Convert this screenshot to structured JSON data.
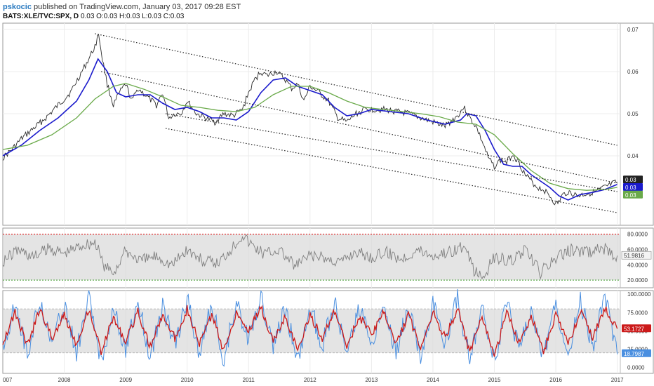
{
  "header": {
    "user": "pskocic",
    "published": "published on TradingView.com, January 03, 2017 09:28 EST",
    "symbol": "BATS:XLE/TVC:SPX, D",
    "ohlc": "0.03 O:0.03 H:0.03 L:0.03 C:0.03"
  },
  "colors": {
    "price": "#2b2b2b",
    "ma_fast": "#1a1acc",
    "ma_slow": "#6aaa4a",
    "channel": "#222222",
    "rsi_line": "#7f7f7f",
    "rsi_band": "#d9d9d9",
    "rsi_upper": "#e03030",
    "rsi_lower": "#5aa84a",
    "stoch_k": "#4a8fe0",
    "stoch_d": "#cc1a1a",
    "stoch_band": "#d9d9d9"
  },
  "chart_data": [
    {
      "type": "line",
      "panel": "price",
      "x_labels": [
        "007",
        "2008",
        "2009",
        "2010",
        "2011",
        "2012",
        "2013",
        "2014",
        "2015",
        "2016",
        "2017"
      ],
      "xlim": [
        2007.0,
        2017.05
      ],
      "y_ticks": [
        "0.07",
        "0.06",
        "0.05",
        "0.04"
      ],
      "ylim": [
        0.0235,
        0.0715
      ],
      "series": [
        {
          "key": "price",
          "x": [
            2007.0,
            2007.15,
            2007.3,
            2007.5,
            2007.7,
            2007.9,
            2008.1,
            2008.25,
            2008.4,
            2008.5,
            2008.56,
            2008.62,
            2008.7,
            2008.8,
            2008.9,
            2009.0,
            2009.1,
            2009.2,
            2009.35,
            2009.5,
            2009.6,
            2009.7,
            2009.8,
            2009.9,
            2010.0,
            2010.15,
            2010.3,
            2010.45,
            2010.6,
            2010.75,
            2010.9,
            2011.0,
            2011.1,
            2011.2,
            2011.3,
            2011.45,
            2011.6,
            2011.7,
            2011.8,
            2011.9,
            2012.0,
            2012.15,
            2012.3,
            2012.45,
            2012.6,
            2012.75,
            2012.9,
            2013.0,
            2013.2,
            2013.4,
            2013.6,
            2013.8,
            2014.0,
            2014.2,
            2014.4,
            2014.5,
            2014.55,
            2014.6,
            2014.7,
            2014.8,
            2014.9,
            2015.0,
            2015.1,
            2015.2,
            2015.3,
            2015.4,
            2015.5,
            2015.6,
            2015.7,
            2015.8,
            2015.9,
            2016.0,
            2016.05,
            2016.1,
            2016.2,
            2016.35,
            2016.5,
            2016.65,
            2016.8,
            2016.95,
            2017.0
          ],
          "values": [
            0.0395,
            0.0415,
            0.044,
            0.0465,
            0.049,
            0.052,
            0.055,
            0.059,
            0.063,
            0.066,
            0.069,
            0.063,
            0.057,
            0.052,
            0.055,
            0.057,
            0.053,
            0.056,
            0.054,
            0.052,
            0.055,
            0.049,
            0.05,
            0.05,
            0.053,
            0.05,
            0.049,
            0.048,
            0.05,
            0.0495,
            0.051,
            0.055,
            0.058,
            0.06,
            0.059,
            0.06,
            0.058,
            0.056,
            0.057,
            0.053,
            0.0565,
            0.055,
            0.053,
            0.049,
            0.048,
            0.05,
            0.051,
            0.051,
            0.051,
            0.0505,
            0.05,
            0.049,
            0.048,
            0.047,
            0.0495,
            0.0515,
            0.0505,
            0.049,
            0.047,
            0.0435,
            0.0395,
            0.0375,
            0.039,
            0.0385,
            0.0405,
            0.0385,
            0.0355,
            0.034,
            0.0325,
            0.032,
            0.0305,
            0.0285,
            0.029,
            0.0305,
            0.0315,
            0.0305,
            0.031,
            0.0315,
            0.0325,
            0.0335,
            0.0338
          ]
        },
        {
          "key": "ma_fast",
          "x": [
            2007.0,
            2007.3,
            2007.6,
            2007.9,
            2008.2,
            2008.4,
            2008.55,
            2008.7,
            2008.85,
            2009.0,
            2009.2,
            2009.4,
            2009.6,
            2009.8,
            2010.0,
            2010.2,
            2010.4,
            2010.6,
            2010.8,
            2011.0,
            2011.2,
            2011.4,
            2011.6,
            2011.8,
            2012.0,
            2012.2,
            2012.4,
            2012.6,
            2012.8,
            2013.0,
            2013.3,
            2013.6,
            2013.9,
            2014.2,
            2014.45,
            2014.55,
            2014.7,
            2014.85,
            2015.0,
            2015.15,
            2015.3,
            2015.45,
            2015.6,
            2015.75,
            2015.9,
            2016.05,
            2016.2,
            2016.4,
            2016.6,
            2016.8,
            2017.0
          ],
          "values": [
            0.04,
            0.0425,
            0.046,
            0.049,
            0.053,
            0.058,
            0.063,
            0.06,
            0.055,
            0.054,
            0.0545,
            0.0545,
            0.0525,
            0.051,
            0.0515,
            0.0505,
            0.049,
            0.049,
            0.0485,
            0.0505,
            0.055,
            0.058,
            0.0585,
            0.0565,
            0.0555,
            0.0545,
            0.0515,
            0.0495,
            0.05,
            0.051,
            0.0505,
            0.05,
            0.0485,
            0.0475,
            0.0485,
            0.05,
            0.0495,
            0.046,
            0.0415,
            0.038,
            0.0375,
            0.0375,
            0.0355,
            0.034,
            0.0325,
            0.0305,
            0.0295,
            0.0308,
            0.0313,
            0.032,
            0.0332
          ]
        },
        {
          "key": "ma_slow",
          "x": [
            2007.0,
            2007.4,
            2007.8,
            2008.2,
            2008.5,
            2008.8,
            2009.0,
            2009.3,
            2009.6,
            2009.9,
            2010.2,
            2010.5,
            2010.8,
            2011.1,
            2011.4,
            2011.7,
            2012.0,
            2012.3,
            2012.6,
            2012.9,
            2013.2,
            2013.5,
            2013.8,
            2014.1,
            2014.4,
            2014.7,
            2015.0,
            2015.3,
            2015.6,
            2015.9,
            2016.2,
            2016.5,
            2016.8,
            2017.0
          ],
          "values": [
            0.0415,
            0.0425,
            0.045,
            0.049,
            0.0535,
            0.0565,
            0.0572,
            0.0558,
            0.054,
            0.052,
            0.0515,
            0.0508,
            0.0505,
            0.0515,
            0.0545,
            0.0565,
            0.0565,
            0.055,
            0.053,
            0.0515,
            0.051,
            0.0505,
            0.05,
            0.0493,
            0.048,
            0.0475,
            0.045,
            0.0405,
            0.0365,
            0.0335,
            0.0322,
            0.0318,
            0.032,
            0.0325
          ]
        },
        {
          "key": "channel",
          "x": [
            2008.5,
            2017.0
          ],
          "values": [
            0.069,
            0.0425
          ]
        },
        {
          "key": "channel",
          "x": [
            2008.6,
            2017.0
          ],
          "values": [
            0.06,
            0.0335
          ]
        },
        {
          "key": "channel",
          "x": [
            2009.65,
            2017.0
          ],
          "values": [
            0.05,
            0.0315
          ]
        },
        {
          "key": "channel",
          "x": [
            2009.65,
            2017.0
          ],
          "values": [
            0.0465,
            0.0265
          ]
        }
      ],
      "last_values": [
        {
          "label": "0.03",
          "color": "#222222",
          "y": 0.0338
        },
        {
          "label": "0.03",
          "color": "#1a1acc",
          "y": 0.0325
        },
        {
          "label": "0.03",
          "color": "#6aaa4a",
          "y": 0.0312
        }
      ]
    },
    {
      "type": "line",
      "panel": "rsi",
      "y_ticks": [
        "80.0000",
        "60.0000",
        "40.0000",
        "20.0000"
      ],
      "ylim": [
        10,
        88
      ],
      "bands": [
        20,
        80
      ],
      "series": [
        {
          "key": "rsi_line",
          "x": [
            2007.0,
            2007.25,
            2007.5,
            2007.75,
            2008.0,
            2008.25,
            2008.5,
            2008.65,
            2008.8,
            2009.0,
            2009.25,
            2009.5,
            2009.75,
            2010.0,
            2010.25,
            2010.5,
            2010.75,
            2010.9,
            2011.0,
            2011.25,
            2011.5,
            2011.75,
            2012.0,
            2012.25,
            2012.5,
            2012.75,
            2013.0,
            2013.25,
            2013.5,
            2013.75,
            2014.0,
            2014.25,
            2014.5,
            2014.65,
            2014.8,
            2015.0,
            2015.25,
            2015.5,
            2015.75,
            2016.0,
            2016.25,
            2016.5,
            2016.75,
            2017.0
          ],
          "values": [
            45,
            60,
            50,
            62,
            55,
            65,
            70,
            38,
            30,
            58,
            45,
            52,
            40,
            60,
            45,
            42,
            65,
            80,
            70,
            55,
            60,
            38,
            52,
            48,
            44,
            58,
            50,
            56,
            48,
            60,
            52,
            57,
            64,
            35,
            22,
            50,
            45,
            58,
            30,
            48,
            60,
            56,
            62,
            52
          ]
        }
      ],
      "last_values": [
        {
          "label": "51.9816",
          "color": "#444444",
          "y": 52
        }
      ]
    },
    {
      "type": "line",
      "panel": "stochastic",
      "y_ticks": [
        "100.0000",
        "75.0000",
        "50.0000",
        "25.0000",
        "0.0000"
      ],
      "ylim": [
        -8,
        105
      ],
      "bands": [
        20,
        80
      ],
      "series": [
        {
          "key": "stoch_k",
          "x": [
            2007.0,
            2007.2,
            2007.4,
            2007.6,
            2007.8,
            2008.0,
            2008.2,
            2008.4,
            2008.6,
            2008.8,
            2009.0,
            2009.2,
            2009.4,
            2009.6,
            2009.8,
            2010.0,
            2010.2,
            2010.4,
            2010.6,
            2010.8,
            2011.0,
            2011.2,
            2011.4,
            2011.6,
            2011.8,
            2012.0,
            2012.2,
            2012.4,
            2012.6,
            2012.8,
            2013.0,
            2013.2,
            2013.4,
            2013.6,
            2013.8,
            2014.0,
            2014.2,
            2014.4,
            2014.6,
            2014.8,
            2015.0,
            2015.2,
            2015.4,
            2015.6,
            2015.8,
            2016.0,
            2016.2,
            2016.4,
            2016.6,
            2016.8,
            2017.0
          ],
          "values": [
            25,
            90,
            15,
            95,
            30,
            85,
            20,
            95,
            10,
            80,
            25,
            90,
            15,
            85,
            30,
            95,
            20,
            85,
            10,
            90,
            40,
            95,
            25,
            80,
            10,
            85,
            30,
            90,
            15,
            80,
            35,
            90,
            20,
            85,
            15,
            90,
            30,
            95,
            10,
            80,
            5,
            90,
            25,
            80,
            10,
            85,
            20,
            90,
            30,
            95,
            18
          ]
        },
        {
          "key": "stoch_d",
          "x": [
            2007.0,
            2007.2,
            2007.4,
            2007.6,
            2007.8,
            2008.0,
            2008.2,
            2008.4,
            2008.6,
            2008.8,
            2009.0,
            2009.2,
            2009.4,
            2009.6,
            2009.8,
            2010.0,
            2010.2,
            2010.4,
            2010.6,
            2010.8,
            2011.0,
            2011.2,
            2011.4,
            2011.6,
            2011.8,
            2012.0,
            2012.2,
            2012.4,
            2012.6,
            2012.8,
            2013.0,
            2013.2,
            2013.4,
            2013.6,
            2013.8,
            2014.0,
            2014.2,
            2014.4,
            2014.6,
            2014.8,
            2015.0,
            2015.2,
            2015.4,
            2015.6,
            2015.8,
            2016.0,
            2016.2,
            2016.4,
            2016.6,
            2016.8,
            2017.0
          ],
          "values": [
            35,
            75,
            30,
            80,
            40,
            72,
            32,
            80,
            22,
            68,
            35,
            76,
            28,
            72,
            40,
            80,
            32,
            72,
            22,
            76,
            50,
            82,
            35,
            70,
            22,
            72,
            40,
            76,
            28,
            70,
            45,
            76,
            32,
            72,
            28,
            76,
            40,
            80,
            20,
            68,
            15,
            75,
            35,
            70,
            22,
            72,
            32,
            76,
            42,
            80,
            53
          ]
        }
      ],
      "last_values": [
        {
          "label": "53.1727",
          "color": "#cc1a1a",
          "y": 53
        },
        {
          "label": "18.7987",
          "color": "#4a8fe0",
          "y": 19
        }
      ]
    }
  ]
}
